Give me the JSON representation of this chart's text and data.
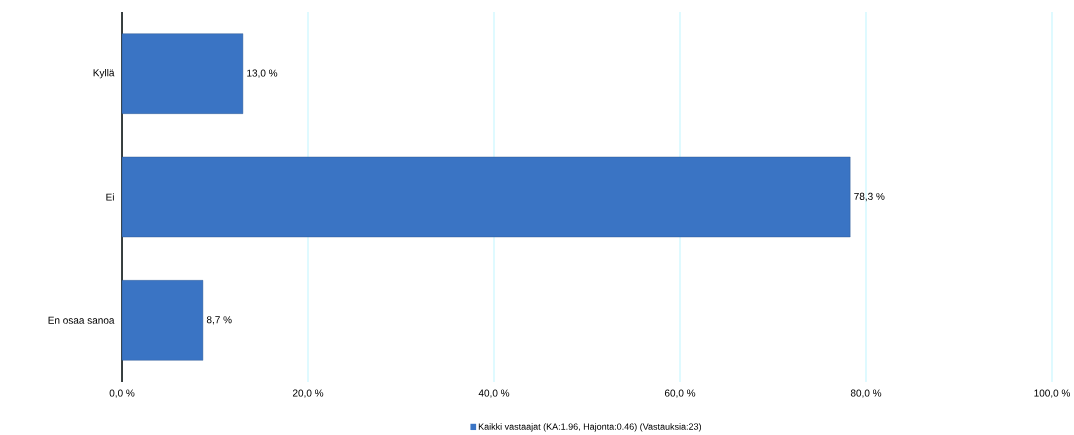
{
  "chart_data": {
    "type": "bar",
    "orientation": "horizontal",
    "categories": [
      "Kyllä",
      "Ei",
      "En osaa sanoa"
    ],
    "series": [
      {
        "name": "Kaikki vastaajat (KA:1.96, Hajonta:0.46) (Vastauksia:23)",
        "color": "#3a74c4",
        "values": [
          13.0,
          78.3,
          8.7
        ],
        "value_labels": [
          "13,0 %",
          "78,3 %",
          "8,7 %"
        ]
      }
    ],
    "xlim": [
      0,
      100
    ],
    "xticks": [
      {
        "value": 0,
        "label": "0,0 %"
      },
      {
        "value": 20,
        "label": "20,0 %"
      },
      {
        "value": 40,
        "label": "40,0 %"
      },
      {
        "value": 60,
        "label": "60,0 %"
      },
      {
        "value": 80,
        "label": "80,0 %"
      },
      {
        "value": 100,
        "label": "100,0 %"
      }
    ],
    "grid": "x",
    "legend": "bottom"
  }
}
